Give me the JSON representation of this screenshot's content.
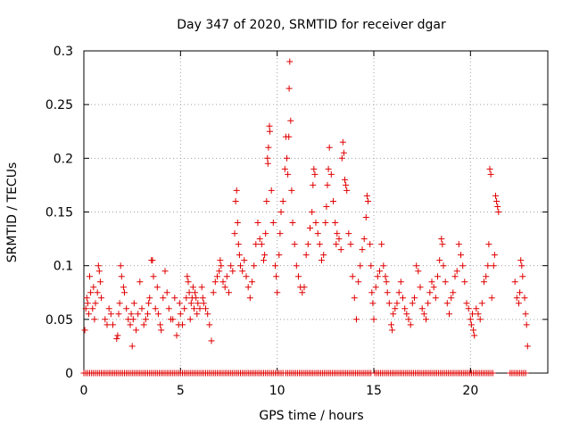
{
  "chart_data": {
    "type": "scatter",
    "title": "Day 347 of 2020, SRMTID for receiver dgar",
    "xlabel": "GPS time / hours",
    "ylabel": "SRMTID / TECUs",
    "xlim": [
      0,
      24
    ],
    "ylim": [
      0,
      0.3
    ],
    "xticks": [
      0,
      5,
      10,
      15,
      20
    ],
    "xtick_labels": [
      "0",
      "5",
      "10",
      "15",
      "20"
    ],
    "yticks": [
      0,
      0.05,
      0.1,
      0.15,
      0.2,
      0.25,
      0.3
    ],
    "ytick_labels": [
      "0",
      "0.05",
      "0.1",
      "0.15",
      "0.2",
      "0.25",
      "0.3"
    ],
    "grid": true,
    "marker": "+",
    "color": "#e00000",
    "series": [
      {
        "name": "SRMTID",
        "points": [
          [
            0.05,
            0.04
          ],
          [
            0.1,
            0.06
          ],
          [
            0.15,
            0.07
          ],
          [
            0.2,
            0.065
          ],
          [
            0.25,
            0.055
          ],
          [
            0.3,
            0.09
          ],
          [
            0.35,
            0.075
          ],
          [
            0.45,
            0.06
          ],
          [
            0.5,
            0.08
          ],
          [
            0.55,
            0.05
          ],
          [
            0.6,
            0.065
          ],
          [
            0.7,
            0.075
          ],
          [
            0.75,
            0.1
          ],
          [
            0.8,
            0.095
          ],
          [
            0.85,
            0.085
          ],
          [
            0.9,
            0.07
          ],
          [
            1.1,
            0.05
          ],
          [
            1.2,
            0.045
          ],
          [
            1.3,
            0.06
          ],
          [
            1.4,
            0.055
          ],
          [
            1.5,
            0.045
          ],
          [
            1.7,
            0.032
          ],
          [
            1.75,
            0.035
          ],
          [
            1.8,
            0.055
          ],
          [
            1.85,
            0.065
          ],
          [
            1.9,
            0.1
          ],
          [
            1.95,
            0.09
          ],
          [
            2.05,
            0.08
          ],
          [
            2.1,
            0.075
          ],
          [
            2.2,
            0.06
          ],
          [
            2.3,
            0.05
          ],
          [
            2.4,
            0.045
          ],
          [
            2.45,
            0.055
          ],
          [
            2.5,
            0.025
          ],
          [
            2.55,
            0.05
          ],
          [
            2.6,
            0.065
          ],
          [
            2.7,
            0.04
          ],
          [
            2.8,
            0.055
          ],
          [
            2.9,
            0.085
          ],
          [
            3.0,
            0.06
          ],
          [
            3.1,
            0.045
          ],
          [
            3.2,
            0.05
          ],
          [
            3.3,
            0.055
          ],
          [
            3.35,
            0.065
          ],
          [
            3.4,
            0.07
          ],
          [
            3.5,
            0.105
          ],
          [
            3.55,
            0.105
          ],
          [
            3.6,
            0.09
          ],
          [
            3.7,
            0.06
          ],
          [
            3.8,
            0.08
          ],
          [
            3.85,
            0.055
          ],
          [
            3.95,
            0.045
          ],
          [
            4.0,
            0.04
          ],
          [
            4.1,
            0.07
          ],
          [
            4.2,
            0.095
          ],
          [
            4.3,
            0.075
          ],
          [
            4.4,
            0.06
          ],
          [
            4.5,
            0.05
          ],
          [
            4.6,
            0.05
          ],
          [
            4.7,
            0.07
          ],
          [
            4.8,
            0.035
          ],
          [
            4.9,
            0.045
          ],
          [
            4.95,
            0.065
          ],
          [
            5.0,
            0.055
          ],
          [
            5.1,
            0.045
          ],
          [
            5.2,
            0.06
          ],
          [
            5.3,
            0.07
          ],
          [
            5.35,
            0.09
          ],
          [
            5.4,
            0.085
          ],
          [
            5.45,
            0.075
          ],
          [
            5.5,
            0.05
          ],
          [
            5.55,
            0.065
          ],
          [
            5.6,
            0.07
          ],
          [
            5.65,
            0.08
          ],
          [
            5.7,
            0.06
          ],
          [
            5.75,
            0.075
          ],
          [
            5.8,
            0.07
          ],
          [
            5.85,
            0.055
          ],
          [
            5.9,
            0.065
          ],
          [
            6.0,
            0.06
          ],
          [
            6.1,
            0.08
          ],
          [
            6.15,
            0.07
          ],
          [
            6.2,
            0.065
          ],
          [
            6.3,
            0.06
          ],
          [
            6.4,
            0.055
          ],
          [
            6.5,
            0.045
          ],
          [
            6.6,
            0.03
          ],
          [
            6.7,
            0.075
          ],
          [
            6.8,
            0.085
          ],
          [
            6.9,
            0.09
          ],
          [
            7.0,
            0.095
          ],
          [
            7.05,
            0.105
          ],
          [
            7.1,
            0.1
          ],
          [
            7.2,
            0.085
          ],
          [
            7.3,
            0.08
          ],
          [
            7.4,
            0.09
          ],
          [
            7.5,
            0.075
          ],
          [
            7.6,
            0.1
          ],
          [
            7.7,
            0.095
          ],
          [
            7.8,
            0.13
          ],
          [
            7.85,
            0.16
          ],
          [
            7.9,
            0.17
          ],
          [
            7.95,
            0.14
          ],
          [
            8.0,
            0.12
          ],
          [
            8.05,
            0.11
          ],
          [
            8.1,
            0.1
          ],
          [
            8.2,
            0.095
          ],
          [
            8.3,
            0.105
          ],
          [
            8.4,
            0.09
          ],
          [
            8.5,
            0.08
          ],
          [
            8.6,
            0.07
          ],
          [
            8.7,
            0.085
          ],
          [
            8.8,
            0.1
          ],
          [
            8.9,
            0.12
          ],
          [
            9.0,
            0.14
          ],
          [
            9.1,
            0.125
          ],
          [
            9.2,
            0.12
          ],
          [
            9.3,
            0.105
          ],
          [
            9.35,
            0.11
          ],
          [
            9.4,
            0.13
          ],
          [
            9.45,
            0.16
          ],
          [
            9.5,
            0.2
          ],
          [
            9.52,
            0.195
          ],
          [
            9.55,
            0.21
          ],
          [
            9.6,
            0.23
          ],
          [
            9.62,
            0.225
          ],
          [
            9.7,
            0.17
          ],
          [
            9.8,
            0.14
          ],
          [
            9.9,
            0.1
          ],
          [
            9.95,
            0.09
          ],
          [
            10.0,
            0.075
          ],
          [
            10.1,
            0.11
          ],
          [
            10.15,
            0.13
          ],
          [
            10.2,
            0.15
          ],
          [
            10.3,
            0.16
          ],
          [
            10.4,
            0.19
          ],
          [
            10.45,
            0.22
          ],
          [
            10.5,
            0.2
          ],
          [
            10.55,
            0.185
          ],
          [
            10.6,
            0.22
          ],
          [
            10.62,
            0.265
          ],
          [
            10.65,
            0.29
          ],
          [
            10.7,
            0.235
          ],
          [
            10.75,
            0.17
          ],
          [
            10.8,
            0.14
          ],
          [
            10.9,
            0.12
          ],
          [
            11.0,
            0.1
          ],
          [
            11.1,
            0.09
          ],
          [
            11.2,
            0.08
          ],
          [
            11.3,
            0.075
          ],
          [
            11.4,
            0.08
          ],
          [
            11.5,
            0.11
          ],
          [
            11.6,
            0.12
          ],
          [
            11.7,
            0.135
          ],
          [
            11.8,
            0.15
          ],
          [
            11.85,
            0.175
          ],
          [
            11.9,
            0.19
          ],
          [
            11.95,
            0.185
          ],
          [
            12.0,
            0.14
          ],
          [
            12.1,
            0.13
          ],
          [
            12.2,
            0.12
          ],
          [
            12.3,
            0.105
          ],
          [
            12.4,
            0.11
          ],
          [
            12.5,
            0.14
          ],
          [
            12.55,
            0.155
          ],
          [
            12.6,
            0.175
          ],
          [
            12.65,
            0.19
          ],
          [
            12.7,
            0.21
          ],
          [
            12.8,
            0.185
          ],
          [
            12.9,
            0.16
          ],
          [
            13.0,
            0.14
          ],
          [
            13.05,
            0.12
          ],
          [
            13.1,
            0.13
          ],
          [
            13.2,
            0.125
          ],
          [
            13.3,
            0.115
          ],
          [
            13.35,
            0.2
          ],
          [
            13.4,
            0.215
          ],
          [
            13.45,
            0.205
          ],
          [
            13.5,
            0.18
          ],
          [
            13.55,
            0.175
          ],
          [
            13.6,
            0.17
          ],
          [
            13.7,
            0.13
          ],
          [
            13.8,
            0.12
          ],
          [
            13.9,
            0.09
          ],
          [
            14.0,
            0.07
          ],
          [
            14.1,
            0.05
          ],
          [
            14.2,
            0.085
          ],
          [
            14.3,
            0.1
          ],
          [
            14.4,
            0.115
          ],
          [
            14.5,
            0.125
          ],
          [
            14.6,
            0.145
          ],
          [
            14.65,
            0.165
          ],
          [
            14.7,
            0.16
          ],
          [
            14.8,
            0.12
          ],
          [
            14.85,
            0.1
          ],
          [
            14.9,
            0.075
          ],
          [
            14.95,
            0.065
          ],
          [
            15.0,
            0.05
          ],
          [
            15.1,
            0.08
          ],
          [
            15.2,
            0.09
          ],
          [
            15.3,
            0.095
          ],
          [
            15.4,
            0.12
          ],
          [
            15.5,
            0.1
          ],
          [
            15.6,
            0.09
          ],
          [
            15.65,
            0.085
          ],
          [
            15.7,
            0.075
          ],
          [
            15.8,
            0.065
          ],
          [
            15.9,
            0.045
          ],
          [
            15.95,
            0.04
          ],
          [
            16.0,
            0.055
          ],
          [
            16.1,
            0.06
          ],
          [
            16.2,
            0.065
          ],
          [
            16.3,
            0.075
          ],
          [
            16.4,
            0.085
          ],
          [
            16.5,
            0.07
          ],
          [
            16.6,
            0.06
          ],
          [
            16.7,
            0.055
          ],
          [
            16.8,
            0.05
          ],
          [
            16.9,
            0.045
          ],
          [
            17.0,
            0.065
          ],
          [
            17.1,
            0.07
          ],
          [
            17.2,
            0.1
          ],
          [
            17.3,
            0.095
          ],
          [
            17.4,
            0.08
          ],
          [
            17.5,
            0.06
          ],
          [
            17.6,
            0.055
          ],
          [
            17.7,
            0.05
          ],
          [
            17.8,
            0.065
          ],
          [
            17.9,
            0.075
          ],
          [
            18.0,
            0.085
          ],
          [
            18.1,
            0.08
          ],
          [
            18.2,
            0.07
          ],
          [
            18.3,
            0.09
          ],
          [
            18.4,
            0.105
          ],
          [
            18.5,
            0.125
          ],
          [
            18.55,
            0.12
          ],
          [
            18.6,
            0.1
          ],
          [
            18.7,
            0.085
          ],
          [
            18.8,
            0.065
          ],
          [
            18.9,
            0.055
          ],
          [
            19.0,
            0.07
          ],
          [
            19.1,
            0.075
          ],
          [
            19.2,
            0.09
          ],
          [
            19.3,
            0.095
          ],
          [
            19.4,
            0.12
          ],
          [
            19.5,
            0.11
          ],
          [
            19.6,
            0.1
          ],
          [
            19.7,
            0.085
          ],
          [
            19.8,
            0.065
          ],
          [
            19.9,
            0.06
          ],
          [
            20.0,
            0.05
          ],
          [
            20.05,
            0.045
          ],
          [
            20.1,
            0.055
          ],
          [
            20.15,
            0.04
          ],
          [
            20.2,
            0.035
          ],
          [
            20.3,
            0.06
          ],
          [
            20.4,
            0.055
          ],
          [
            20.5,
            0.05
          ],
          [
            20.6,
            0.065
          ],
          [
            20.7,
            0.085
          ],
          [
            20.8,
            0.09
          ],
          [
            20.9,
            0.1
          ],
          [
            20.95,
            0.12
          ],
          [
            21.0,
            0.19
          ],
          [
            21.05,
            0.185
          ],
          [
            21.1,
            0.07
          ],
          [
            21.2,
            0.1
          ],
          [
            21.25,
            0.11
          ],
          [
            21.3,
            0.165
          ],
          [
            21.35,
            0.16
          ],
          [
            21.4,
            0.155
          ],
          [
            21.45,
            0.15
          ],
          [
            22.3,
            0.085
          ],
          [
            22.4,
            0.07
          ],
          [
            22.5,
            0.065
          ],
          [
            22.55,
            0.075
          ],
          [
            22.6,
            0.105
          ],
          [
            22.65,
            0.1
          ],
          [
            22.7,
            0.09
          ],
          [
            22.8,
            0.07
          ],
          [
            22.85,
            0.055
          ],
          [
            22.9,
            0.045
          ],
          [
            22.95,
            0.025
          ]
        ]
      }
    ],
    "zero_band_ranges": [
      [
        0.0,
        10.3
      ],
      [
        10.45,
        14.9
      ],
      [
        15.05,
        21.2
      ],
      [
        22.05,
        22.85
      ]
    ],
    "zero_band_step": 0.1,
    "zero_band_value": 0
  }
}
